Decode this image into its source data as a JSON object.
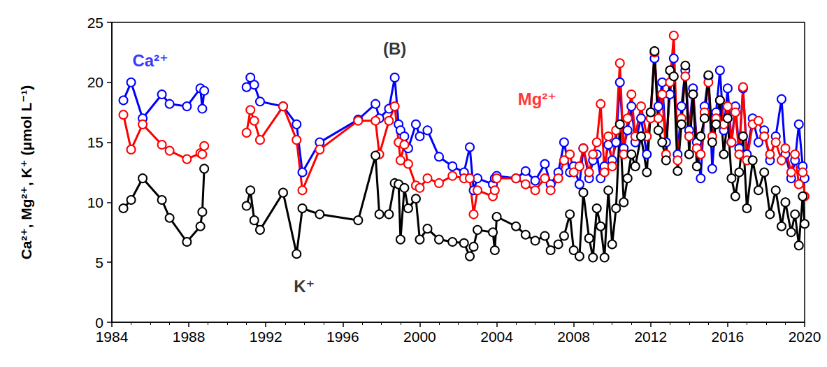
{
  "chart_data": {
    "type": "line",
    "y_label": "Ca²⁺, Mg²⁺, K⁺ (μmol L⁻¹)",
    "x": [
      1984.6,
      1985.0,
      1985.6,
      1986.6,
      1987.0,
      1987.9,
      1988.6,
      1988.7,
      1988.8,
      1990.0,
      1991.0,
      1991.2,
      1991.4,
      1991.7,
      1992.9,
      1993.6,
      1993.9,
      1994.8,
      1996.8,
      1997.7,
      1997.9,
      1998.4,
      1998.7,
      1998.9,
      1999.0,
      1999.2,
      1999.4,
      1999.8,
      2000.0,
      2000.4,
      2001.0,
      2001.7,
      2002.3,
      2002.6,
      2002.8,
      2003.0,
      2003.8,
      2003.9,
      2004.0,
      2005.0,
      2005.5,
      2006.0,
      2006.5,
      2006.8,
      2007.2,
      2007.5,
      2007.8,
      2008.0,
      2008.3,
      2008.5,
      2008.8,
      2009.0,
      2009.2,
      2009.4,
      2009.6,
      2009.8,
      2010.0,
      2010.2,
      2010.4,
      2010.6,
      2010.8,
      2011.0,
      2011.2,
      2011.5,
      2011.8,
      2012.0,
      2012.2,
      2012.4,
      2012.6,
      2012.8,
      2013.0,
      2013.2,
      2013.4,
      2013.6,
      2013.8,
      2014.0,
      2014.2,
      2014.4,
      2014.6,
      2014.8,
      2015.0,
      2015.2,
      2015.4,
      2015.6,
      2015.8,
      2016.0,
      2016.2,
      2016.4,
      2016.6,
      2016.8,
      2017.0,
      2017.3,
      2017.6,
      2017.9,
      2018.2,
      2018.5,
      2018.8,
      2019.0,
      2019.3,
      2019.5,
      2019.7,
      2019.9,
      2020.0
    ],
    "series": [
      {
        "name": "Ca²⁺",
        "color": "#0000ff",
        "marker": "circle_open",
        "values": [
          18.5,
          20.0,
          17.0,
          19.0,
          18.2,
          18.0,
          19.5,
          17.8,
          19.3,
          null,
          19.6,
          20.4,
          19.8,
          18.4,
          18.0,
          16.5,
          12.5,
          15.0,
          16.9,
          18.2,
          17.0,
          17.8,
          20.4,
          16.5,
          16.0,
          15.5,
          14.5,
          16.5,
          15.5,
          16.0,
          13.8,
          13.0,
          12.5,
          14.6,
          11.0,
          12.0,
          11.5,
          12.0,
          12.2,
          12.0,
          12.6,
          11.8,
          13.2,
          11.5,
          12.5,
          15.0,
          12.5,
          13.0,
          11.5,
          14.5,
          12.0,
          13.5,
          14.0,
          12.0,
          13.0,
          14.8,
          13.5,
          15.0,
          20.0,
          14.5,
          16.0,
          18.0,
          15.0,
          17.0,
          14.0,
          17.5,
          22.0,
          18.0,
          20.0,
          15.0,
          19.0,
          22.0,
          14.0,
          18.0,
          21.0,
          16.0,
          19.5,
          15.0,
          12.0,
          18.0,
          20.5,
          12.8,
          17.5,
          21.0,
          16.0,
          19.5,
          15.0,
          18.0,
          14.5,
          19.5,
          14.0,
          17.0,
          15.0,
          16.0,
          13.5,
          15.5,
          18.6,
          14.0,
          12.0,
          13.5,
          16.5,
          13.0,
          12.0
        ]
      },
      {
        "name": "Mg²⁺",
        "color": "#ff0000",
        "marker": "circle_open",
        "values": [
          17.3,
          14.4,
          16.5,
          14.8,
          14.3,
          13.6,
          14.1,
          14.0,
          14.7,
          null,
          15.8,
          17.7,
          16.8,
          15.2,
          18.0,
          15.2,
          11.0,
          14.4,
          16.8,
          16.8,
          14.0,
          16.8,
          18.0,
          15.0,
          13.5,
          14.8,
          13.2,
          11.4,
          11.2,
          12.0,
          11.6,
          12.2,
          12.0,
          12.0,
          9.0,
          11.0,
          10.5,
          11.0,
          12.0,
          12.0,
          11.5,
          11.0,
          12.0,
          11.0,
          12.0,
          13.5,
          14.0,
          12.5,
          13.0,
          14.5,
          12.5,
          14.0,
          15.0,
          18.2,
          12.5,
          15.5,
          13.0,
          16.0,
          21.6,
          14.0,
          17.0,
          19.0,
          15.5,
          18.0,
          15.5,
          17.0,
          22.5,
          17.0,
          19.0,
          14.0,
          20.0,
          23.9,
          13.5,
          17.0,
          20.5,
          15.5,
          19.0,
          14.5,
          14.0,
          17.5,
          20.0,
          15.5,
          17.0,
          18.5,
          16.5,
          18.0,
          15.0,
          17.5,
          14.0,
          19.6,
          13.5,
          16.5,
          16.8,
          15.5,
          14.0,
          15.0,
          13.5,
          14.5,
          12.5,
          14.0,
          11.5,
          12.5,
          10.5
        ]
      },
      {
        "name": "K⁺",
        "color": "#000000",
        "marker": "circle_open",
        "values": [
          9.5,
          10.2,
          12.0,
          10.2,
          8.7,
          6.7,
          8.0,
          9.2,
          12.8,
          null,
          9.7,
          11.0,
          8.5,
          7.7,
          10.8,
          5.7,
          9.5,
          9.0,
          8.5,
          13.9,
          9.0,
          9.0,
          11.6,
          11.5,
          6.9,
          11.2,
          9.5,
          10.3,
          6.9,
          7.8,
          6.9,
          6.7,
          6.6,
          5.5,
          6.3,
          7.7,
          7.5,
          6.0,
          8.8,
          8.0,
          7.3,
          6.8,
          7.2,
          6.0,
          6.5,
          7.2,
          9.0,
          6.0,
          5.5,
          10.8,
          7.0,
          5.4,
          9.5,
          8.0,
          5.4,
          11.0,
          6.5,
          9.5,
          16.5,
          10.0,
          12.0,
          14.0,
          13.0,
          15.5,
          12.5,
          17.5,
          22.6,
          16.0,
          15.0,
          13.5,
          21.0,
          20.5,
          12.6,
          16.5,
          21.4,
          14.0,
          19.0,
          13.0,
          15.5,
          17.0,
          20.6,
          15.0,
          16.5,
          18.5,
          14.0,
          17.0,
          12.0,
          10.5,
          12.5,
          15.5,
          9.5,
          13.5,
          11.0,
          12.5,
          9.0,
          11.0,
          8.0,
          10.0,
          7.5,
          9.0,
          6.4,
          10.5,
          8.2
        ]
      }
    ],
    "annotations": [
      {
        "text": "Ca²⁺",
        "x": 1986.0,
        "y": 21.8,
        "color": "#0000ff"
      },
      {
        "text": "(B)",
        "x": 1998.7,
        "y": 22.8,
        "color": "#000000"
      },
      {
        "text": "Mg²⁺",
        "x": 2006.1,
        "y": 18.6,
        "color": "#ff0000"
      },
      {
        "text": "K⁺",
        "x": 1994.0,
        "y": 3.0,
        "color": "#000000"
      }
    ],
    "xlim": [
      1984,
      2020
    ],
    "xticks": [
      1984,
      1988,
      1992,
      1996,
      2000,
      2004,
      2008,
      2012,
      2016,
      2020
    ],
    "ylim": [
      0,
      25
    ],
    "yticks": [
      0,
      5,
      10,
      15,
      20,
      25
    ],
    "grid": false
  }
}
